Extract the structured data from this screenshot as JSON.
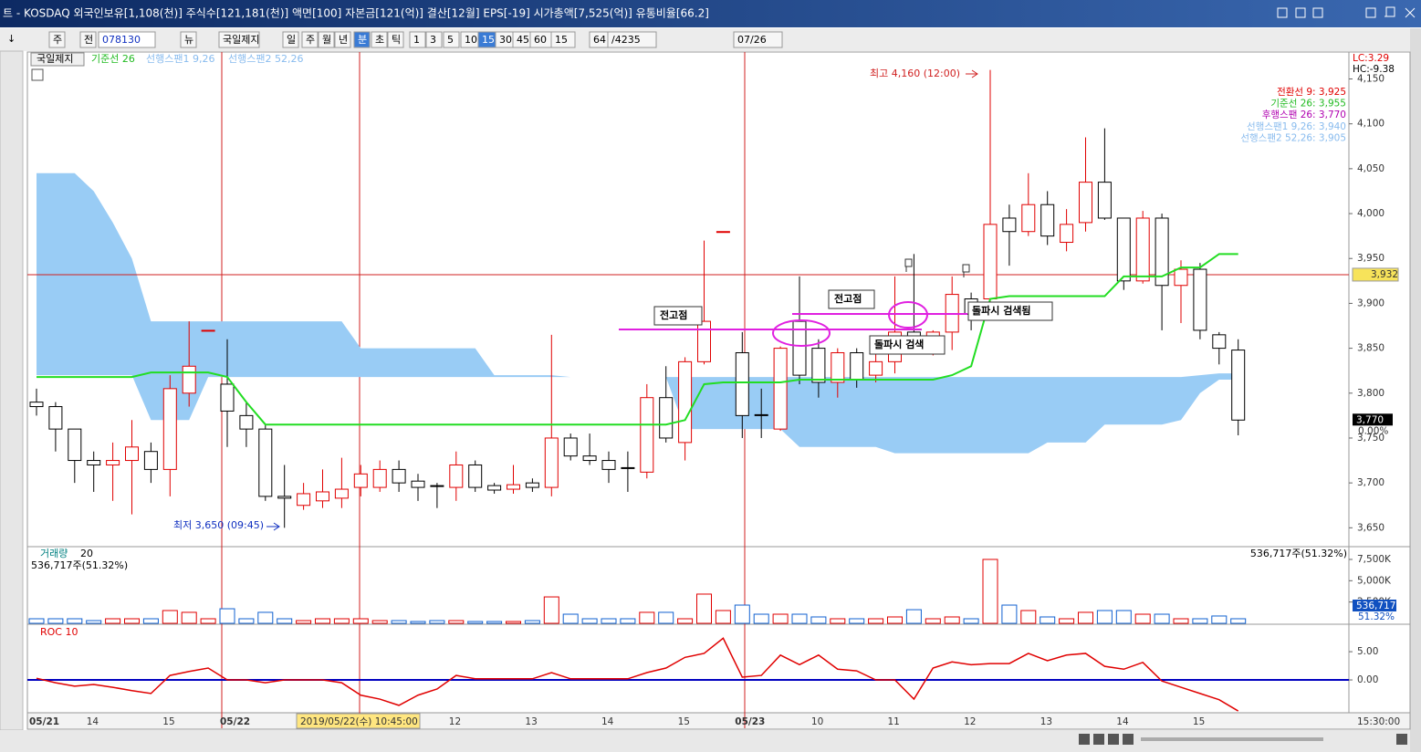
{
  "window": {
    "title": "트 - KOSDAQ 외국인보유[1,108(천)] 주식수[121,181(천)] 액면[100] 자본금[121(억)] 결산[12월] EPS[-19] 시가총액[7,525(억)] 유통비율[66.2]",
    "toolbar": [
      "주",
      "전",
      "078130",
      "뉴",
      "국일제지",
      "일",
      "주",
      "월",
      "년",
      "분",
      "초",
      "틱",
      "1",
      "3",
      "5",
      "10",
      "15",
      "30",
      "45",
      "60",
      "15",
      "64",
      "/4235",
      "07/26"
    ],
    "left_button": "↓"
  },
  "chart_data": [
    {
      "type": "candlestick",
      "stock_name": "국일제지",
      "categories": [
        "05/21",
        null,
        null,
        "14",
        null,
        null,
        null,
        "15",
        null,
        null,
        "05/22",
        null,
        null,
        null,
        null,
        null,
        null,
        null,
        null,
        null,
        null,
        null,
        "12",
        null,
        null,
        null,
        "13",
        null,
        null,
        null,
        "14",
        null,
        null,
        null,
        "15",
        null,
        null,
        "05/23",
        null,
        null,
        null,
        "10",
        null,
        null,
        null,
        "11",
        null,
        null,
        null,
        "12",
        null,
        null,
        null,
        "13",
        null,
        null,
        null,
        "14",
        null,
        null,
        null,
        "15",
        null,
        null
      ],
      "open": [
        3790,
        3785,
        3760,
        3725,
        3720,
        3725,
        3735,
        3715,
        3800,
        3870,
        3810,
        3775,
        3760,
        3685,
        3675,
        3680,
        3683,
        3695,
        3695,
        3715,
        3702,
        3697,
        3695,
        3720,
        3697,
        3693,
        3700,
        3695,
        3750,
        3730,
        3725,
        3717,
        3712,
        3795,
        3745,
        3835,
        3980,
        3845,
        3776,
        3760,
        3880,
        3850,
        3812,
        3845,
        3820,
        3835,
        3868,
        3848,
        3868,
        3905,
        3905,
        3995,
        3980,
        4010,
        3968,
        3990,
        4035,
        3995,
        3925,
        3995,
        3920,
        3938,
        3865,
        3848
      ],
      "high": [
        3805,
        3790,
        3760,
        3735,
        3745,
        3770,
        3745,
        3820,
        3880,
        3870,
        3860,
        3790,
        3765,
        3720,
        3700,
        3715,
        3728,
        3720,
        3725,
        3725,
        3710,
        3700,
        3735,
        3725,
        3700,
        3720,
        3705,
        3865,
        3755,
        3755,
        3735,
        3735,
        3810,
        3830,
        3840,
        3970,
        3980,
        3868,
        3805,
        3852,
        3930,
        3860,
        3850,
        3850,
        3850,
        3930,
        3955,
        3870,
        3930,
        3912,
        4160,
        4010,
        4045,
        4025,
        4005,
        4085,
        4095,
        3995,
        4003,
        4000,
        3948,
        3945,
        3868,
        3860
      ],
      "low": [
        3775,
        3735,
        3700,
        3690,
        3680,
        3665,
        3700,
        3685,
        3785,
        3870,
        3740,
        3740,
        3680,
        3650,
        3670,
        3672,
        3672,
        3685,
        3690,
        3690,
        3680,
        3672,
        3680,
        3690,
        3688,
        3688,
        3690,
        3685,
        3725,
        3720,
        3700,
        3690,
        3705,
        3745,
        3725,
        3832,
        3980,
        3750,
        3750,
        3758,
        3810,
        3795,
        3795,
        3806,
        3812,
        3822,
        3855,
        3842,
        3848,
        3870,
        3902,
        3942,
        3975,
        3965,
        3958,
        3980,
        3993,
        3915,
        3922,
        3870,
        3878,
        3860,
        3832,
        3753
      ],
      "close": [
        3785,
        3760,
        3725,
        3720,
        3725,
        3740,
        3715,
        3805,
        3830,
        3870,
        3780,
        3760,
        3685,
        3683,
        3688,
        3690,
        3693,
        3710,
        3715,
        3700,
        3695,
        3696,
        3720,
        3695,
        3692,
        3698,
        3695,
        3750,
        3730,
        3725,
        3715,
        3716,
        3795,
        3750,
        3835,
        3880,
        3980,
        3775,
        3775,
        3850,
        3820,
        3812,
        3845,
        3815,
        3835,
        3868,
        3862,
        3868,
        3910,
        3888,
        3988,
        3980,
        4010,
        3975,
        3988,
        4035,
        3995,
        3925,
        3995,
        3920,
        3938,
        3870,
        3850,
        3770
      ],
      "up_color": "#e00000",
      "down_color": "#000000",
      "series": [
        {
          "name": "기준선 26",
          "color": "#22dd22",
          "values": [
            3818,
            3818,
            3818,
            3818,
            3818,
            3818,
            3823,
            3823,
            3823,
            3823,
            3818,
            3790,
            3765,
            3765,
            3765,
            3765,
            3765,
            3765,
            3765,
            3765,
            3765,
            3765,
            3765,
            3765,
            3765,
            3765,
            3765,
            3765,
            3765,
            3765,
            3765,
            3765,
            3765,
            3765,
            3770,
            3810,
            3812,
            3812,
            3812,
            3812,
            3815,
            3815,
            3815,
            3815,
            3815,
            3815,
            3815,
            3815,
            3820,
            3830,
            3905,
            3908,
            3908,
            3908,
            3908,
            3908,
            3908,
            3930,
            3930,
            3930,
            3940,
            3940,
            3955,
            3955
          ]
        },
        {
          "name": "선행스팬1 9,26",
          "color": "#99ccf5",
          "values": [
            4045,
            4045,
            4045,
            4025,
            3990,
            3950,
            3880,
            3880,
            3880,
            3880,
            3880,
            3880,
            3880,
            3880,
            3880,
            3880,
            3880,
            3850,
            3850,
            3850,
            3850,
            3850,
            3850,
            3850,
            3820,
            3820,
            3820,
            3820,
            3818,
            3818,
            3818,
            3818,
            3818,
            3818,
            3818,
            3818,
            3818,
            3818,
            3818,
            3818,
            3818,
            3818,
            3818,
            3818,
            3818,
            3818,
            3818,
            3818,
            3818,
            3818,
            3818,
            3818,
            3818,
            3818,
            3818,
            3818,
            3818,
            3818,
            3818,
            3818,
            3818,
            3820,
            3822,
            3822
          ]
        },
        {
          "name": "선행스팬2 52,26",
          "color": "#99ccf5",
          "values": [
            3820,
            3820,
            3820,
            3820,
            3820,
            3820,
            3770,
            3770,
            3770,
            3818,
            3818,
            3818,
            3818,
            3818,
            3818,
            3818,
            3818,
            3818,
            3818,
            3818,
            3818,
            3818,
            3818,
            3818,
            3818,
            3818,
            3818,
            3818,
            3818,
            3818,
            3818,
            3818,
            3818,
            3818,
            3760,
            3760,
            3760,
            3760,
            3760,
            3760,
            3740,
            3740,
            3740,
            3740,
            3740,
            3733,
            3733,
            3733,
            3733,
            3733,
            3733,
            3733,
            3733,
            3745,
            3745,
            3745,
            3765,
            3765,
            3765,
            3765,
            3770,
            3800,
            3815,
            3815
          ]
        }
      ],
      "ylim": [
        3630,
        4180
      ],
      "yticks": [
        {
          "value": 3650,
          "label": "3,650"
        },
        {
          "value": 3700,
          "label": "3,700"
        },
        {
          "value": 3750,
          "label": "3,750"
        },
        {
          "value": 3800,
          "label": "3,800"
        },
        {
          "value": 3850,
          "label": "3,850"
        },
        {
          "value": 3900,
          "label": "3,900"
        },
        {
          "value": 3950,
          "label": "3,950"
        },
        {
          "value": 4000,
          "label": "4,000"
        },
        {
          "value": 4050,
          "label": "4,050"
        },
        {
          "value": 4100,
          "label": "4,100"
        },
        {
          "value": 4150,
          "label": "4,150"
        }
      ],
      "indicator_legend": [
        "전환선 9: 3,925",
        "기준선 26: 3,955",
        "후행스팬 26: 3,770",
        "선행스팬1 9,26: 3,940",
        "선행스팬2 52,26: 3,905"
      ],
      "indicator_colors": [
        "#e00000",
        "#22bb22",
        "#b000b0",
        "#88bbee",
        "#88bbee"
      ],
      "lc": "LC:3.29",
      "hc": "HC:-9.38",
      "reference_price": {
        "value": 3932,
        "label": "3,932"
      },
      "last_price": {
        "value": 3770,
        "label": "3,770"
      },
      "change": "0.00%",
      "high_note": "최고 4,160 (12:00)",
      "low_note": "최저 3,650 (09:45)",
      "notes": [
        "전고점",
        "전고점",
        "돌파시 검색",
        "돌파시 검색됨"
      ],
      "cursor_label": "2019/05/22(수) 10:45:00",
      "end_time": "15:30:00"
    },
    {
      "type": "bar",
      "title": "거래량",
      "period": "20",
      "summary": "536,717주(51.32%)",
      "last_label": "536,717",
      "ratio_label": "51.32%",
      "color_up": "#e00000",
      "color_down": "#1060d0",
      "values": [
        535000,
        535000,
        535000,
        320000,
        535000,
        535000,
        535000,
        1500000,
        1290000,
        535000,
        1710000,
        535000,
        1290000,
        535000,
        320000,
        535000,
        535000,
        535000,
        320000,
        320000,
        214000,
        320000,
        320000,
        214000,
        214000,
        214000,
        320000,
        3100000,
        1070000,
        535000,
        535000,
        535000,
        1290000,
        1290000,
        535000,
        3430000,
        1500000,
        2140000,
        1070000,
        1070000,
        1070000,
        750000,
        535000,
        535000,
        535000,
        750000,
        1600000,
        535000,
        750000,
        535000,
        7500000,
        2140000,
        1500000,
        750000,
        535000,
        1290000,
        1500000,
        1500000,
        1070000,
        1070000,
        535000,
        535000,
        860000,
        536717
      ],
      "ylim": [
        0,
        8890000
      ],
      "yticks": [
        {
          "value": 2500000,
          "label": "2,500K"
        },
        {
          "value": 5000000,
          "label": "5,000K"
        },
        {
          "value": 7500000,
          "label": "7,500K"
        }
      ]
    },
    {
      "type": "line",
      "title": "ROC 10",
      "color": "#e00000",
      "zero_color": "#0000c0",
      "values": [
        0.3,
        -0.5,
        -1.1,
        -0.8,
        -1.3,
        -1.9,
        -2.4,
        0.8,
        1.5,
        2.1,
        0.0,
        0.0,
        -0.5,
        0.0,
        0.0,
        0.0,
        -0.5,
        -2.7,
        -3.4,
        -4.5,
        -2.7,
        -1.6,
        0.8,
        0.2,
        0.2,
        0.2,
        0.2,
        1.3,
        0.2,
        0.2,
        0.2,
        0.2,
        1.3,
        2.1,
        4.0,
        4.7,
        7.4,
        0.5,
        0.8,
        4.4,
        2.7,
        4.4,
        1.9,
        1.6,
        0.0,
        0.0,
        -3.4,
        2.1,
        3.2,
        2.7,
        2.9,
        2.9,
        4.7,
        3.4,
        4.4,
        4.7,
        2.4,
        1.9,
        3.1,
        -0.2,
        -1.3,
        -2.4,
        -3.5,
        -5.5
      ],
      "ylim": [
        -5.65,
        9.7
      ],
      "yticks": [
        {
          "value": 5,
          "label": "5.00"
        },
        {
          "value": 0,
          "label": "0.00"
        }
      ]
    }
  ]
}
